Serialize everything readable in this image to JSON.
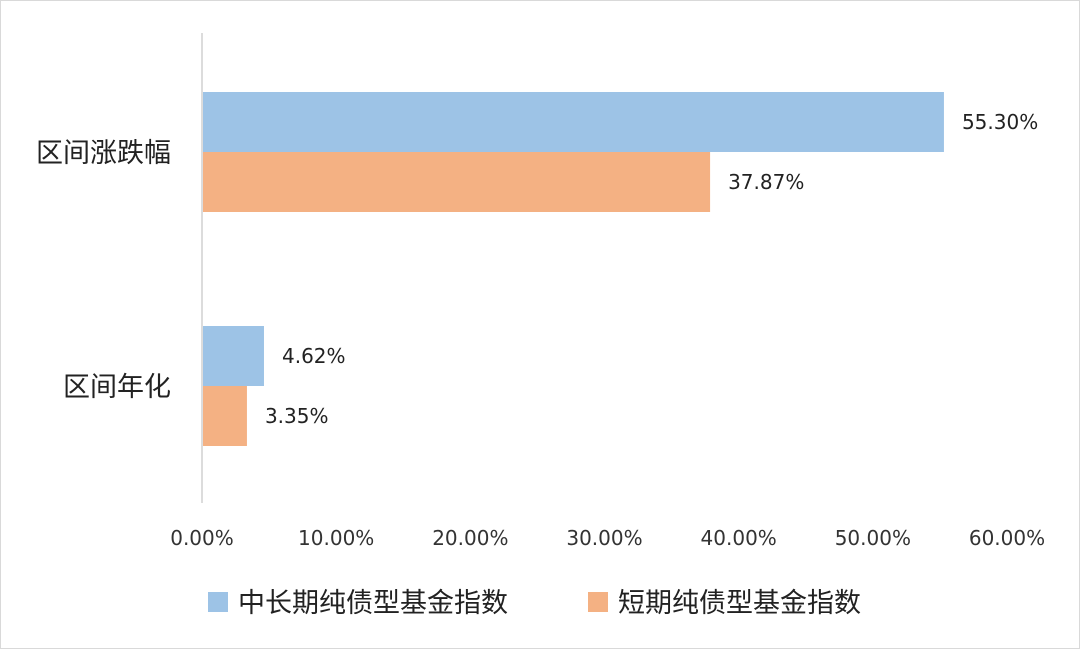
{
  "chart_data": {
    "type": "bar",
    "orientation": "horizontal",
    "categories": [
      "区间涨跌幅",
      "区间年化"
    ],
    "series": [
      {
        "name": "中长期纯债型基金指数",
        "values": [
          55.3,
          4.62
        ],
        "labels": [
          "55.30%",
          "4.62%"
        ],
        "color": "#9DC3E6"
      },
      {
        "name": "短期纯债型基金指数",
        "values": [
          37.87,
          3.35
        ],
        "labels": [
          "37.87%",
          "3.35%"
        ],
        "color": "#F4B183"
      }
    ],
    "xlim": [
      0,
      60
    ],
    "xticks": [
      0,
      10,
      20,
      30,
      40,
      50,
      60
    ],
    "xtick_labels": [
      "0.00%",
      "10.00%",
      "20.00%",
      "30.00%",
      "40.00%",
      "50.00%",
      "60.00%"
    ],
    "title": "",
    "xlabel": "",
    "ylabel": "",
    "grid": false,
    "legend_position": "bottom-center"
  }
}
